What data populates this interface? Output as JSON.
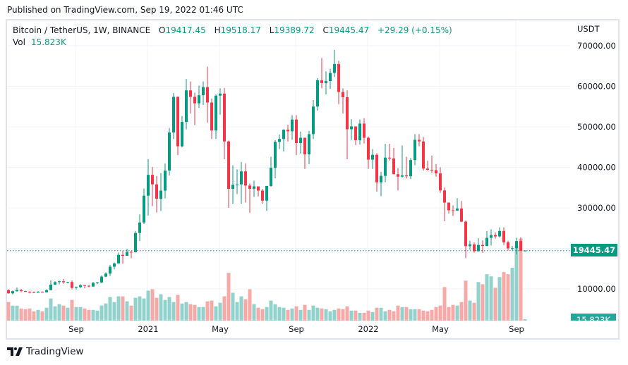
{
  "header": {
    "published": "Published on TradingView.com, Sep 19, 2022 01:46 UTC"
  },
  "legend": {
    "symbol": "Bitcoin / TetherUS, 1W, BINANCE",
    "open_label": "O",
    "open": "19417.45",
    "high_label": "H",
    "high": "19518.17",
    "low_label": "L",
    "low": "19389.72",
    "close_label": "C",
    "close": "19445.47",
    "change": "+29.29 (+0.15%)",
    "vol_label": "Vol",
    "vol": "15.823K"
  },
  "price_axis": {
    "currency": "USDT",
    "current_price_label": "19445.47",
    "current_volume_label": "15.823K"
  },
  "footer": {
    "brand": "TradingView"
  },
  "colors": {
    "up": "#089981",
    "down": "#f23645",
    "vol_up": "#92d2cc",
    "vol_down": "#f7a9a7",
    "grid": "#f0f3fa"
  },
  "chart_data": {
    "type": "candlestick",
    "interval": "1W",
    "y_ticks": [
      "70000.00",
      "60000.00",
      "50000.00",
      "40000.00",
      "30000.00",
      "10000.00"
    ],
    "y_tick_values": [
      70000,
      60000,
      50000,
      40000,
      30000,
      10000
    ],
    "x_ticks": [
      "Sep",
      "2021",
      "May",
      "Sep",
      "2022",
      "May",
      "Sep"
    ],
    "x_tick_bar_index": [
      16,
      33,
      50,
      68,
      85,
      102,
      120
    ],
    "current_price": 19445.47,
    "volume_unit": "K",
    "candles_ohlcv": [
      [
        9680,
        9950,
        8820,
        8900,
        208
      ],
      [
        8900,
        9590,
        8630,
        9450,
        168
      ],
      [
        9450,
        10380,
        9270,
        9700,
        168
      ],
      [
        9700,
        10000,
        9200,
        9460,
        136
      ],
      [
        9460,
        9590,
        9200,
        9300,
        128
      ],
      [
        9300,
        9400,
        8900,
        9190,
        136
      ],
      [
        9190,
        9340,
        8940,
        9070,
        104
      ],
      [
        9070,
        9460,
        9050,
        9300,
        120
      ],
      [
        9300,
        9400,
        9100,
        9160,
        104
      ],
      [
        9160,
        9900,
        9100,
        9700,
        144
      ],
      [
        9700,
        12100,
        9640,
        11060,
        248
      ],
      [
        11060,
        11900,
        10940,
        11680,
        160
      ],
      [
        11680,
        12060,
        11100,
        11880,
        184
      ],
      [
        11880,
        12470,
        11280,
        11650,
        168
      ],
      [
        11650,
        11750,
        11400,
        11700,
        144
      ],
      [
        11700,
        12090,
        9875,
        10250,
        232
      ],
      [
        10250,
        10590,
        9850,
        10450,
        152
      ],
      [
        10450,
        11180,
        10200,
        10920,
        152
      ],
      [
        10920,
        10990,
        10140,
        10780,
        136
      ],
      [
        10780,
        10950,
        10400,
        10600,
        120
      ],
      [
        10600,
        11720,
        10520,
        11500,
        120
      ],
      [
        11500,
        11720,
        11200,
        11600,
        112
      ],
      [
        11600,
        13350,
        11420,
        13030,
        168
      ],
      [
        13030,
        14080,
        12900,
        13780,
        192
      ],
      [
        13780,
        15960,
        13200,
        15480,
        264
      ],
      [
        15480,
        16480,
        14830,
        16300,
        208
      ],
      [
        16300,
        18950,
        16300,
        18400,
        272
      ],
      [
        18400,
        19480,
        16200,
        18180,
        272
      ],
      [
        18180,
        19920,
        18200,
        19140,
        216
      ],
      [
        19140,
        19420,
        17560,
        19050,
        168
      ],
      [
        19050,
        24300,
        19000,
        23800,
        256
      ],
      [
        23800,
        28400,
        21800,
        26400,
        272
      ],
      [
        26400,
        34780,
        26000,
        33000,
        248
      ],
      [
        33000,
        42000,
        28100,
        38150,
        336
      ],
      [
        38150,
        40100,
        30420,
        35800,
        352
      ],
      [
        35800,
        37850,
        28850,
        32260,
        256
      ],
      [
        32260,
        38600,
        29240,
        34260,
        296
      ],
      [
        34260,
        40950,
        32300,
        39200,
        232
      ],
      [
        39200,
        49700,
        37990,
        48600,
        264
      ],
      [
        48600,
        58350,
        47000,
        57400,
        208
      ],
      [
        57400,
        57500,
        43000,
        45200,
        288
      ],
      [
        45200,
        52640,
        44950,
        51200,
        192
      ],
      [
        51200,
        61800,
        49400,
        59000,
        208
      ],
      [
        59000,
        61190,
        53270,
        57400,
        184
      ],
      [
        57400,
        58430,
        50430,
        55800,
        176
      ],
      [
        55800,
        60200,
        54700,
        57800,
        152
      ],
      [
        57800,
        61200,
        55400,
        59800,
        152
      ],
      [
        59800,
        64850,
        51000,
        56000,
        216
      ],
      [
        56000,
        57000,
        47000,
        49100,
        224
      ],
      [
        49100,
        58000,
        47000,
        57700,
        160
      ],
      [
        57700,
        59500,
        53000,
        58200,
        200
      ],
      [
        58200,
        59600,
        42000,
        46400,
        272
      ],
      [
        46400,
        46600,
        30000,
        34700,
        536
      ],
      [
        34700,
        40500,
        31000,
        35700,
        312
      ],
      [
        35700,
        39500,
        33400,
        35800,
        208
      ],
      [
        35800,
        41330,
        31000,
        39000,
        272
      ],
      [
        39000,
        41000,
        31300,
        35500,
        240
      ],
      [
        35500,
        36000,
        28800,
        34700,
        352
      ],
      [
        34700,
        36700,
        32700,
        35300,
        184
      ],
      [
        35300,
        35300,
        32800,
        34250,
        144
      ],
      [
        34250,
        34700,
        31000,
        31780,
        128
      ],
      [
        31780,
        35400,
        29280,
        35400,
        152
      ],
      [
        35400,
        42600,
        35200,
        39900,
        224
      ],
      [
        39900,
        46700,
        37300,
        46300,
        184
      ],
      [
        46300,
        48100,
        44500,
        47000,
        152
      ],
      [
        47000,
        49400,
        43900,
        49300,
        144
      ],
      [
        49300,
        50500,
        46400,
        48900,
        120
      ],
      [
        48900,
        52900,
        46800,
        51800,
        136
      ],
      [
        51800,
        52900,
        43000,
        46000,
        160
      ],
      [
        46000,
        48800,
        43400,
        47300,
        120
      ],
      [
        47300,
        47350,
        39600,
        43200,
        176
      ],
      [
        43200,
        49000,
        40800,
        48200,
        120
      ],
      [
        48200,
        56600,
        47000,
        55000,
        168
      ],
      [
        55000,
        62000,
        54000,
        61500,
        144
      ],
      [
        61500,
        67000,
        59500,
        60800,
        136
      ],
      [
        60800,
        63700,
        58000,
        61300,
        128
      ],
      [
        61300,
        64300,
        59400,
        63300,
        104
      ],
      [
        63300,
        69000,
        62300,
        65500,
        120
      ],
      [
        65500,
        66300,
        55600,
        58600,
        136
      ],
      [
        58600,
        59500,
        53300,
        57300,
        128
      ],
      [
        57300,
        59000,
        42000,
        49400,
        160
      ],
      [
        49400,
        51900,
        46800,
        50100,
        112
      ],
      [
        50100,
        50100,
        45500,
        46700,
        112
      ],
      [
        46700,
        51800,
        45600,
        50800,
        88
      ],
      [
        50800,
        52100,
        45900,
        47300,
        88
      ],
      [
        47300,
        47600,
        39600,
        41900,
        112
      ],
      [
        41900,
        44500,
        39600,
        43100,
        96
      ],
      [
        43100,
        43500,
        34000,
        36300,
        144
      ],
      [
        36300,
        38900,
        32900,
        37900,
        144
      ],
      [
        37900,
        45800,
        36300,
        42400,
        104
      ],
      [
        42400,
        45800,
        41700,
        42200,
        120
      ],
      [
        42200,
        44800,
        39500,
        38300,
        104
      ],
      [
        38300,
        39800,
        34300,
        37700,
        168
      ],
      [
        37700,
        45400,
        37500,
        38000,
        152
      ],
      [
        38000,
        42600,
        37200,
        37800,
        152
      ],
      [
        37800,
        42300,
        37100,
        41800,
        128
      ],
      [
        41800,
        48200,
        40500,
        46800,
        128
      ],
      [
        46800,
        48200,
        45200,
        46400,
        128
      ],
      [
        46400,
        47500,
        39200,
        39700,
        112
      ],
      [
        39700,
        41600,
        39200,
        39400,
        104
      ],
      [
        39400,
        42900,
        38600,
        39300,
        120
      ],
      [
        39300,
        40800,
        37700,
        38500,
        152
      ],
      [
        38500,
        40000,
        33700,
        34300,
        168
      ],
      [
        34300,
        35000,
        26700,
        31300,
        376
      ],
      [
        31300,
        31300,
        28600,
        29400,
        152
      ],
      [
        29400,
        30600,
        28000,
        29350,
        176
      ],
      [
        29350,
        32400,
        29300,
        29850,
        168
      ],
      [
        29850,
        31700,
        26500,
        26600,
        208
      ],
      [
        26600,
        26900,
        17600,
        20550,
        448
      ],
      [
        20550,
        21900,
        19600,
        21000,
        224
      ],
      [
        21000,
        21500,
        18950,
        19300,
        200
      ],
      [
        19300,
        22500,
        19250,
        20850,
        432
      ],
      [
        20850,
        22000,
        18900,
        20600,
        408
      ],
      [
        20600,
        24300,
        20500,
        22600,
        520
      ],
      [
        22600,
        24700,
        20700,
        23300,
        496
      ],
      [
        23300,
        24000,
        22400,
        22950,
        368
      ],
      [
        22950,
        25200,
        22700,
        24300,
        488
      ],
      [
        24300,
        25200,
        20800,
        21500,
        544
      ],
      [
        21500,
        21900,
        19500,
        20000,
        520
      ],
      [
        20000,
        20600,
        19500,
        20050,
        592
      ],
      [
        20050,
        22600,
        18500,
        21800,
        840
      ],
      [
        21800,
        22700,
        19300,
        19420,
        920
      ],
      [
        19417.45,
        19518.17,
        19389.72,
        19445.47,
        15.823
      ]
    ]
  }
}
